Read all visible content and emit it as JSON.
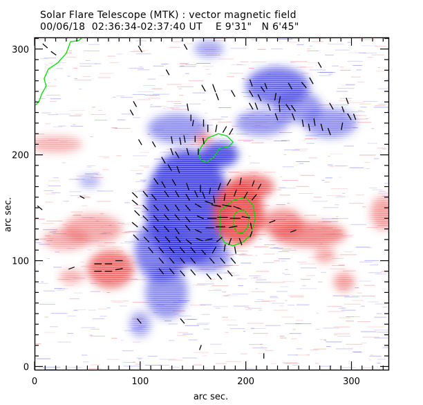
{
  "header": {
    "title": "Solar Flare Telescope (MTK) : vector magnetic field",
    "date": "00/06/18",
    "time_range": "02:36:34-02:37:40 UT",
    "longitude": "E 9'31\"",
    "latitude": "N 6'45\""
  },
  "chart_data": {
    "type": "heatmap",
    "title": "Solar Flare Telescope (MTK) : vector magnetic field",
    "xlabel": "arc sec.",
    "ylabel": "arc sec.",
    "xlim": [
      0,
      335
    ],
    "ylim": [
      -3,
      311
    ],
    "x_ticks": [
      0,
      100,
      200,
      300
    ],
    "y_ticks": [
      0,
      100,
      200,
      300
    ],
    "x_tick_labels": [
      "0",
      "100",
      "200",
      "300"
    ],
    "y_tick_labels": [
      "0",
      "100",
      "200",
      "300"
    ],
    "minor_tick_step": 10,
    "colors": {
      "positive": "#f04040",
      "negative": "#3838e8",
      "contour": "#00dd00",
      "vector": "#000000"
    },
    "positive_regions": [
      {
        "x": 193,
        "y": 145,
        "rx": 24,
        "ry": 30,
        "strength": 1.0
      },
      {
        "x": 205,
        "y": 170,
        "rx": 22,
        "ry": 12,
        "strength": 0.8
      },
      {
        "x": 260,
        "y": 125,
        "rx": 35,
        "ry": 12,
        "strength": 0.6
      },
      {
        "x": 235,
        "y": 135,
        "rx": 20,
        "ry": 14,
        "strength": 0.55
      },
      {
        "x": 72,
        "y": 92,
        "rx": 22,
        "ry": 18,
        "strength": 0.75
      },
      {
        "x": 55,
        "y": 130,
        "rx": 28,
        "ry": 14,
        "strength": 0.35
      },
      {
        "x": 30,
        "y": 120,
        "rx": 22,
        "ry": 10,
        "strength": 0.3
      },
      {
        "x": 35,
        "y": 85,
        "rx": 12,
        "ry": 6,
        "strength": 0.35
      },
      {
        "x": 293,
        "y": 80,
        "rx": 10,
        "ry": 9,
        "strength": 0.45
      },
      {
        "x": 275,
        "y": 105,
        "rx": 10,
        "ry": 7,
        "strength": 0.35
      },
      {
        "x": 330,
        "y": 145,
        "rx": 12,
        "ry": 16,
        "strength": 0.4
      },
      {
        "x": 160,
        "y": 215,
        "rx": 8,
        "ry": 6,
        "strength": 0.55
      },
      {
        "x": 20,
        "y": 210,
        "rx": 25,
        "ry": 8,
        "strength": 0.25
      }
    ],
    "negative_regions": [
      {
        "x": 145,
        "y": 150,
        "rx": 40,
        "ry": 55,
        "strength": 1.0
      },
      {
        "x": 175,
        "y": 200,
        "rx": 18,
        "ry": 12,
        "strength": 1.0
      },
      {
        "x": 120,
        "y": 110,
        "rx": 25,
        "ry": 30,
        "strength": 0.7
      },
      {
        "x": 125,
        "y": 70,
        "rx": 20,
        "ry": 25,
        "strength": 0.5
      },
      {
        "x": 165,
        "y": 105,
        "rx": 20,
        "ry": 15,
        "strength": 0.55
      },
      {
        "x": 230,
        "y": 265,
        "rx": 30,
        "ry": 18,
        "strength": 0.75
      },
      {
        "x": 250,
        "y": 245,
        "rx": 22,
        "ry": 15,
        "strength": 0.5
      },
      {
        "x": 280,
        "y": 230,
        "rx": 25,
        "ry": 14,
        "strength": 0.45
      },
      {
        "x": 135,
        "y": 225,
        "rx": 28,
        "ry": 14,
        "strength": 0.45
      },
      {
        "x": 215,
        "y": 230,
        "rx": 25,
        "ry": 12,
        "strength": 0.45
      },
      {
        "x": 165,
        "y": 300,
        "rx": 14,
        "ry": 8,
        "strength": 0.35
      },
      {
        "x": 100,
        "y": 40,
        "rx": 10,
        "ry": 12,
        "strength": 0.35
      },
      {
        "x": 52,
        "y": 175,
        "rx": 10,
        "ry": 6,
        "strength": 0.25
      }
    ],
    "contours": [
      {
        "name": "limb",
        "points": [
          [
            45,
            311
          ],
          [
            42,
            308
          ],
          [
            34,
            307
          ],
          [
            30,
            296
          ],
          [
            22,
            287
          ],
          [
            13,
            281
          ],
          [
            9,
            272
          ],
          [
            11,
            265
          ],
          [
            7,
            258
          ],
          [
            4,
            250
          ],
          [
            1,
            247
          ]
        ]
      },
      {
        "name": "negative-core",
        "points": [
          [
            158,
            208
          ],
          [
            164,
            216
          ],
          [
            174,
            220
          ],
          [
            182,
            218
          ],
          [
            188,
            212
          ],
          [
            184,
            208
          ],
          [
            175,
            206
          ],
          [
            170,
            198
          ],
          [
            163,
            193
          ],
          [
            157,
            195
          ],
          [
            155,
            202
          ],
          [
            158,
            208
          ]
        ]
      },
      {
        "name": "positive-outer",
        "points": [
          [
            178,
            149
          ],
          [
            188,
            157
          ],
          [
            200,
            160
          ],
          [
            207,
            152
          ],
          [
            209,
            140
          ],
          [
            205,
            125
          ],
          [
            198,
            118
          ],
          [
            188,
            114
          ],
          [
            180,
            117
          ],
          [
            175,
            125
          ],
          [
            176,
            137
          ],
          [
            175,
            147
          ],
          [
            178,
            149
          ]
        ]
      },
      {
        "name": "positive-inner",
        "points": [
          [
            191,
            146
          ],
          [
            198,
            148
          ],
          [
            203,
            142
          ],
          [
            202,
            132
          ],
          [
            197,
            126
          ],
          [
            191,
            127
          ],
          [
            188,
            135
          ],
          [
            189,
            143
          ],
          [
            191,
            146
          ]
        ]
      }
    ],
    "vectors": [
      [
        18,
        296,
        -35,
        6
      ],
      [
        100,
        300,
        -60,
        7
      ],
      [
        143,
        302,
        -60,
        6
      ],
      [
        126,
        278,
        -60,
        6
      ],
      [
        160,
        263,
        -60,
        7
      ],
      [
        170,
        263,
        -70,
        8
      ],
      [
        145,
        245,
        -80,
        7
      ],
      [
        95,
        248,
        -60,
        6
      ],
      [
        92,
        240,
        -60,
        6
      ],
      [
        113,
        210,
        -60,
        6
      ],
      [
        100,
        212,
        -60,
        6
      ],
      [
        270,
        285,
        -60,
        6
      ],
      [
        262,
        270,
        -60,
        7
      ],
      [
        255,
        266,
        -50,
        7
      ],
      [
        242,
        265,
        -60,
        7
      ],
      [
        219,
        265,
        -70,
        6
      ],
      [
        205,
        268,
        -70,
        7
      ],
      [
        216,
        262,
        -55,
        6
      ],
      [
        205,
        258,
        -60,
        7
      ],
      [
        213,
        254,
        -65,
        7
      ],
      [
        228,
        255,
        -100,
        7
      ],
      [
        232,
        252,
        -100,
        7
      ],
      [
        188,
        258,
        -60,
        7
      ],
      [
        173,
        255,
        -70,
        7
      ],
      [
        222,
        245,
        -70,
        7
      ],
      [
        232,
        244,
        -85,
        7
      ],
      [
        240,
        245,
        -55,
        7
      ],
      [
        245,
        244,
        -55,
        7
      ],
      [
        210,
        246,
        -70,
        7
      ],
      [
        205,
        246,
        -60,
        7
      ],
      [
        229,
        236,
        -70,
        7
      ],
      [
        245,
        236,
        -70,
        7
      ],
      [
        260,
        226,
        -80,
        7
      ],
      [
        272,
        226,
        -75,
        7
      ],
      [
        279,
        222,
        -70,
        7
      ],
      [
        291,
        227,
        -100,
        7
      ],
      [
        298,
        236,
        -60,
        7
      ],
      [
        303,
        236,
        -70,
        6
      ],
      [
        296,
        251,
        -70,
        6
      ],
      [
        292,
        243,
        -70,
        6
      ],
      [
        281,
        246,
        -60,
        7
      ],
      [
        265,
        231,
        -80,
        7
      ],
      [
        254,
        230,
        -80,
        7
      ],
      [
        160,
        230,
        -90,
        7
      ],
      [
        164,
        225,
        -90,
        7
      ],
      [
        172,
        225,
        -100,
        7
      ],
      [
        180,
        224,
        -120,
        7
      ],
      [
        186,
        222,
        -120,
        7
      ],
      [
        150,
        230,
        -100,
        6
      ],
      [
        152,
        215,
        -90,
        6
      ],
      [
        155,
        203,
        -90,
        6
      ],
      [
        160,
        213,
        -80,
        6
      ],
      [
        148,
        235,
        -90,
        6
      ],
      [
        130,
        214,
        -80,
        7
      ],
      [
        138,
        213,
        -80,
        7
      ],
      [
        142,
        215,
        -80,
        7
      ],
      [
        130,
        203,
        -70,
        7
      ],
      [
        135,
        200,
        -60,
        7
      ],
      [
        145,
        203,
        -75,
        7
      ],
      [
        122,
        195,
        -60,
        7
      ],
      [
        128,
        188,
        -60,
        7
      ],
      [
        136,
        186,
        -70,
        7
      ],
      [
        115,
        175,
        -55,
        7
      ],
      [
        122,
        172,
        -60,
        7
      ],
      [
        132,
        174,
        -60,
        7
      ],
      [
        145,
        170,
        -70,
        7
      ],
      [
        157,
        168,
        -90,
        7
      ],
      [
        166,
        166,
        -100,
        6
      ],
      [
        175,
        170,
        -110,
        7
      ],
      [
        184,
        174,
        -120,
        7
      ],
      [
        195,
        175,
        -100,
        7
      ],
      [
        207,
        173,
        -110,
        6
      ],
      [
        213,
        170,
        -120,
        6
      ],
      [
        95,
        162,
        -45,
        7
      ],
      [
        105,
        163,
        -50,
        7
      ],
      [
        113,
        160,
        -50,
        7
      ],
      [
        125,
        163,
        -55,
        7
      ],
      [
        135,
        163,
        -60,
        7
      ],
      [
        145,
        160,
        -60,
        7
      ],
      [
        153,
        163,
        -65,
        7
      ],
      [
        160,
        162,
        -70,
        7
      ],
      [
        170,
        158,
        -80,
        7
      ],
      [
        180,
        160,
        -100,
        7
      ],
      [
        190,
        164,
        -110,
        7
      ],
      [
        200,
        162,
        -120,
        7
      ],
      [
        208,
        160,
        -130,
        7
      ],
      [
        95,
        155,
        -40,
        7
      ],
      [
        105,
        150,
        -45,
        7
      ],
      [
        115,
        150,
        -50,
        7
      ],
      [
        125,
        150,
        -55,
        7
      ],
      [
        135,
        150,
        -55,
        7
      ],
      [
        145,
        150,
        -50,
        7
      ],
      [
        155,
        152,
        -30,
        7
      ],
      [
        165,
        155,
        -20,
        8
      ],
      [
        172,
        152,
        -10,
        9
      ],
      [
        182,
        152,
        -10,
        9
      ],
      [
        192,
        150,
        -20,
        8
      ],
      [
        97,
        145,
        -45,
        7
      ],
      [
        105,
        140,
        -45,
        7
      ],
      [
        115,
        140,
        -50,
        7
      ],
      [
        125,
        141,
        -50,
        7
      ],
      [
        135,
        141,
        -50,
        7
      ],
      [
        145,
        139,
        -50,
        7
      ],
      [
        157,
        141,
        -25,
        7
      ],
      [
        168,
        140,
        0,
        9
      ],
      [
        178,
        141,
        0,
        10
      ],
      [
        190,
        140,
        0,
        10
      ],
      [
        200,
        141,
        -10,
        8
      ],
      [
        95,
        134,
        -40,
        7
      ],
      [
        105,
        130,
        -45,
        7
      ],
      [
        115,
        130,
        -50,
        7
      ],
      [
        125,
        130,
        -50,
        7
      ],
      [
        135,
        128,
        -55,
        7
      ],
      [
        145,
        131,
        -50,
        7
      ],
      [
        155,
        128,
        -25,
        7
      ],
      [
        166,
        131,
        0,
        8
      ],
      [
        176,
        132,
        0,
        9
      ],
      [
        188,
        132,
        10,
        8
      ],
      [
        205,
        133,
        -80,
        6
      ],
      [
        96,
        122,
        -45,
        7
      ],
      [
        106,
        120,
        -45,
        7
      ],
      [
        116,
        120,
        -50,
        7
      ],
      [
        126,
        120,
        -50,
        7
      ],
      [
        136,
        120,
        -50,
        7
      ],
      [
        146,
        118,
        -40,
        7
      ],
      [
        156,
        120,
        -20,
        7
      ],
      [
        165,
        120,
        10,
        7
      ],
      [
        175,
        120,
        40,
        7
      ],
      [
        185,
        118,
        70,
        7
      ],
      [
        195,
        118,
        -70,
        7
      ],
      [
        205,
        125,
        70,
        6
      ],
      [
        110,
        110,
        -50,
        7
      ],
      [
        120,
        110,
        -50,
        7
      ],
      [
        130,
        110,
        -50,
        7
      ],
      [
        140,
        110,
        -50,
        7
      ],
      [
        150,
        110,
        -50,
        7
      ],
      [
        160,
        108,
        -50,
        6
      ],
      [
        170,
        110,
        60,
        7
      ],
      [
        180,
        112,
        80,
        7
      ],
      [
        190,
        110,
        100,
        7
      ],
      [
        120,
        100,
        -50,
        7
      ],
      [
        130,
        100,
        -50,
        7
      ],
      [
        140,
        100,
        -50,
        7
      ],
      [
        150,
        100,
        -50,
        7
      ],
      [
        168,
        100,
        -50,
        7
      ],
      [
        178,
        100,
        -50,
        7
      ],
      [
        188,
        100,
        -50,
        7
      ],
      [
        120,
        90,
        -50,
        7
      ],
      [
        130,
        90,
        -50,
        7
      ],
      [
        140,
        88,
        -50,
        7
      ],
      [
        150,
        89,
        -50,
        7
      ],
      [
        165,
        85,
        -50,
        7
      ],
      [
        175,
        85,
        -50,
        7
      ],
      [
        185,
        88,
        -50,
        7
      ],
      [
        80,
        100,
        0,
        7
      ],
      [
        70,
        97,
        0,
        7
      ],
      [
        60,
        97,
        0,
        7
      ],
      [
        80,
        92,
        10,
        7
      ],
      [
        70,
        90,
        0,
        7
      ],
      [
        60,
        90,
        0,
        7
      ],
      [
        35,
        93,
        20,
        6
      ],
      [
        99,
        43,
        -50,
        6
      ],
      [
        140,
        43,
        -50,
        6
      ],
      [
        225,
        137,
        20,
        6
      ],
      [
        245,
        128,
        20,
        6
      ],
      [
        157,
        18,
        70,
        5
      ],
      [
        217,
        10,
        -90,
        5
      ],
      [
        10,
        303,
        -40,
        6
      ],
      [
        5,
        150,
        -40,
        6
      ],
      [
        45,
        160,
        -30,
        5
      ]
    ]
  }
}
